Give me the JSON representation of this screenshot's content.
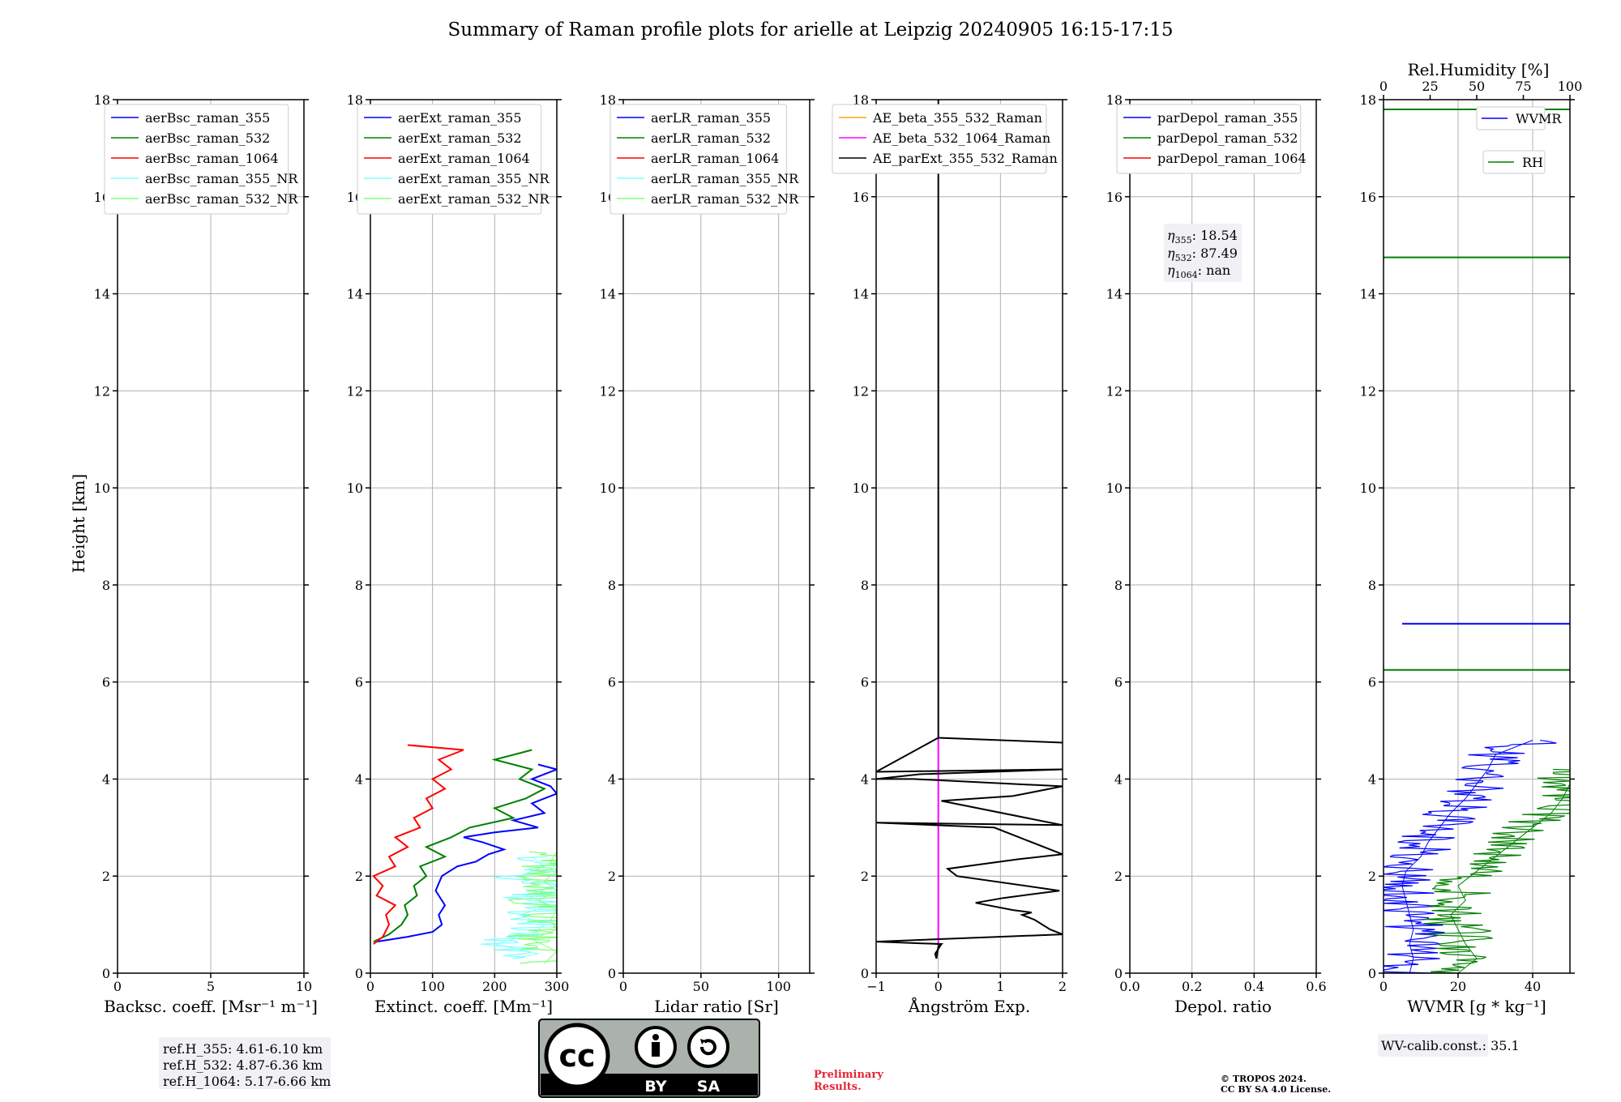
{
  "figure_title": "Summary of Raman profile plots for arielle at Leipzig 20240905 16:15-17:15",
  "y_axis_label": "Height [km]",
  "y_range": [
    0,
    18
  ],
  "y_ticks": [
    "0",
    "2",
    "4",
    "6",
    "8",
    "10",
    "12",
    "14",
    "16",
    "18"
  ],
  "colors": {
    "blue": "#0000ff",
    "green": "#008000",
    "red": "#ff0000",
    "cyan": "#7fffff",
    "lightgreen": "#7fff7f",
    "orange": "#ffa500",
    "magenta": "#ff00ff",
    "black": "#000000",
    "grid": "#b0b0b0",
    "boxbg": "#f0f0f5",
    "prelim": "#e32636"
  },
  "chart_data": [
    {
      "id": "bsc",
      "type": "line",
      "xlabel": "Backsc. coeff. [Msr⁻¹ m⁻¹]",
      "xlim": [
        0,
        10
      ],
      "xticks": [
        0,
        5,
        10
      ],
      "xticklabels": [
        "0",
        "5",
        "10"
      ],
      "legend": [
        "aerBsc_raman_355",
        "aerBsc_raman_532",
        "aerBsc_raman_1064",
        "aerBsc_raman_355_NR",
        "aerBsc_raman_532_NR"
      ],
      "legend_colors": [
        "blue",
        "green",
        "red",
        "cyan",
        "lightgreen"
      ],
      "series": []
    },
    {
      "id": "ext",
      "type": "line",
      "xlabel": "Extinct. coeff. [Mm⁻¹]",
      "xlim": [
        0,
        300
      ],
      "xticks": [
        0,
        100,
        200,
        300
      ],
      "xticklabels": [
        "0",
        "100",
        "200",
        "300"
      ],
      "legend": [
        "aerExt_raman_355",
        "aerExt_raman_532",
        "aerExt_raman_1064",
        "aerExt_raman_355_NR",
        "aerExt_raman_532_NR"
      ],
      "legend_colors": [
        "blue",
        "green",
        "red",
        "cyan",
        "lightgreen"
      ],
      "series": [
        {
          "name": "aerExt_raman_355",
          "color": "blue",
          "noisy": false,
          "points": [
            [
              10,
              0.65
            ],
            [
              60,
              0.75
            ],
            [
              100,
              0.85
            ],
            [
              115,
              1.0
            ],
            [
              110,
              1.2
            ],
            [
              120,
              1.4
            ],
            [
              105,
              1.7
            ],
            [
              115,
              2.0
            ],
            [
              140,
              2.2
            ],
            [
              170,
              2.3
            ],
            [
              190,
              2.45
            ],
            [
              215,
              2.55
            ],
            [
              180,
              2.7
            ],
            [
              150,
              2.8
            ],
            [
              200,
              2.9
            ],
            [
              270,
              3.0
            ],
            [
              230,
              3.15
            ],
            [
              280,
              3.3
            ],
            [
              260,
              3.5
            ],
            [
              300,
              3.7
            ],
            [
              290,
              3.85
            ],
            [
              260,
              4.0
            ],
            [
              300,
              4.2
            ],
            [
              270,
              4.3
            ]
          ]
        },
        {
          "name": "aerExt_raman_532",
          "color": "green",
          "noisy": false,
          "points": [
            [
              5,
              0.65
            ],
            [
              30,
              0.8
            ],
            [
              50,
              1.0
            ],
            [
              60,
              1.2
            ],
            [
              55,
              1.4
            ],
            [
              75,
              1.6
            ],
            [
              70,
              1.8
            ],
            [
              90,
              2.0
            ],
            [
              80,
              2.2
            ],
            [
              120,
              2.4
            ],
            [
              90,
              2.6
            ],
            [
              130,
              2.8
            ],
            [
              160,
              3.0
            ],
            [
              230,
              3.2
            ],
            [
              200,
              3.4
            ],
            [
              250,
              3.6
            ],
            [
              280,
              3.8
            ],
            [
              240,
              4.0
            ],
            [
              260,
              4.2
            ],
            [
              200,
              4.4
            ],
            [
              260,
              4.6
            ]
          ]
        },
        {
          "name": "aerExt_raman_1064",
          "color": "red",
          "noisy": false,
          "points": [
            [
              5,
              0.6
            ],
            [
              20,
              0.75
            ],
            [
              30,
              1.0
            ],
            [
              25,
              1.2
            ],
            [
              40,
              1.4
            ],
            [
              10,
              1.6
            ],
            [
              20,
              1.8
            ],
            [
              5,
              2.0
            ],
            [
              40,
              2.2
            ],
            [
              30,
              2.4
            ],
            [
              60,
              2.6
            ],
            [
              40,
              2.8
            ],
            [
              80,
              3.0
            ],
            [
              70,
              3.2
            ],
            [
              100,
              3.4
            ],
            [
              90,
              3.6
            ],
            [
              120,
              3.8
            ],
            [
              100,
              4.0
            ],
            [
              130,
              4.2
            ],
            [
              110,
              4.4
            ],
            [
              150,
              4.6
            ],
            [
              60,
              4.7
            ]
          ]
        },
        {
          "name": "aerExt_raman_355_NR",
          "color": "cyan",
          "noisy": true,
          "points": [
            [
              230,
              0.3
            ],
            [
              270,
              0.4
            ],
            [
              200,
              0.6
            ],
            [
              260,
              0.8
            ],
            [
              280,
              1.0
            ],
            [
              240,
              1.2
            ],
            [
              290,
              1.4
            ],
            [
              250,
              1.6
            ],
            [
              300,
              1.8
            ],
            [
              240,
              2.0
            ],
            [
              280,
              2.2
            ],
            [
              260,
              2.4
            ]
          ]
        },
        {
          "name": "aerExt_raman_532_NR",
          "color": "lightgreen",
          "noisy": true,
          "points": [
            [
              280,
              0.2
            ],
            [
              300,
              0.45
            ],
            [
              260,
              0.7
            ],
            [
              300,
              0.9
            ],
            [
              290,
              1.1
            ],
            [
              300,
              1.3
            ],
            [
              270,
              1.5
            ],
            [
              300,
              1.7
            ],
            [
              280,
              1.9
            ],
            [
              300,
              2.1
            ],
            [
              290,
              2.3
            ],
            [
              300,
              2.5
            ]
          ]
        }
      ]
    },
    {
      "id": "lr",
      "type": "line",
      "xlabel": "Lidar ratio [Sr]",
      "xlim": [
        0,
        120
      ],
      "xticks": [
        0,
        50,
        100
      ],
      "xticklabels": [
        "0",
        "50",
        "100"
      ],
      "legend": [
        "aerLR_raman_355",
        "aerLR_raman_532",
        "aerLR_raman_1064",
        "aerLR_raman_355_NR",
        "aerLR_raman_532_NR"
      ],
      "legend_colors": [
        "blue",
        "green",
        "red",
        "cyan",
        "lightgreen"
      ],
      "series": []
    },
    {
      "id": "ae",
      "type": "line",
      "xlabel": "Ångström Exp.",
      "xlim": [
        -1,
        2
      ],
      "xticks": [
        -1,
        0,
        1,
        2
      ],
      "xticklabels": [
        "−1",
        "0",
        "1",
        "2"
      ],
      "legend": [
        "AE_beta_355_532_Raman",
        "AE_beta_532_1064_Raman",
        "AE_parExt_355_532_Raman"
      ],
      "legend_colors": [
        "orange",
        "magenta",
        "black"
      ],
      "series": [
        {
          "name": "AE_beta_532_1064_Raman",
          "color": "magenta",
          "noisy": false,
          "points": [
            [
              0,
              0.55
            ],
            [
              0,
              4.85
            ]
          ]
        },
        {
          "name": "AE_parExt_355_532_Raman",
          "color": "black",
          "noisy": false,
          "points": [
            [
              -1,
              0.65
            ],
            [
              0.05,
              0.6
            ],
            [
              0,
              0.5
            ],
            [
              -0.05,
              0.4
            ],
            [
              -0.03,
              0.3
            ],
            [
              0,
              0.55
            ],
            [
              0.05,
              0.6
            ],
            [
              -1,
              0.65
            ],
            [
              -1,
              0.65
            ],
            [
              2,
              0.8
            ],
            [
              1.8,
              0.9
            ],
            [
              1.55,
              1.1
            ],
            [
              1.35,
              1.2
            ],
            [
              1.5,
              1.25
            ],
            [
              1.2,
              1.3
            ],
            [
              0.6,
              1.45
            ],
            [
              1.05,
              1.55
            ],
            [
              1.95,
              1.7
            ],
            [
              0.3,
              2.0
            ],
            [
              0.15,
              2.15
            ],
            [
              1.3,
              2.35
            ],
            [
              2,
              2.45
            ],
            [
              0.9,
              3.0
            ],
            [
              -1,
              3.1
            ],
            [
              2,
              3.05
            ],
            [
              0.05,
              3.55
            ],
            [
              1.2,
              3.65
            ],
            [
              2,
              3.85
            ],
            [
              -0.4,
              4.0
            ],
            [
              -1,
              4.0
            ],
            [
              -0.3,
              4.1
            ],
            [
              2,
              4.2
            ],
            [
              -1,
              4.15
            ],
            [
              0,
              4.85
            ],
            [
              2,
              4.75
            ],
            [
              0,
              4.85
            ],
            [
              0,
              18
            ]
          ]
        }
      ]
    },
    {
      "id": "depol",
      "type": "line",
      "xlabel": "Depol. ratio",
      "xlim": [
        0,
        0.6
      ],
      "xticks": [
        0,
        0.2,
        0.4,
        0.6
      ],
      "xticklabels": [
        "0.0",
        "0.2",
        "0.4",
        "0.6"
      ],
      "legend": [
        "parDepol_raman_355",
        "parDepol_raman_532",
        "parDepol_raman_1064"
      ],
      "legend_colors": [
        "blue",
        "green",
        "red"
      ],
      "annotation": {
        "eta355": "18.54",
        "eta532": "87.49",
        "eta1064": "nan"
      },
      "series": []
    },
    {
      "id": "wv",
      "type": "line",
      "xlabel": "WVMR [g * kg⁻¹]",
      "xlim": [
        0,
        50
      ],
      "xticks": [
        0,
        20,
        40
      ],
      "xticklabels": [
        "0",
        "20",
        "40"
      ],
      "top_axis_label": "Rel.Humidity [%]",
      "top_xlim": [
        0,
        100
      ],
      "top_xticks": [
        0,
        25,
        50,
        75,
        100
      ],
      "top_xticklabels": [
        "0",
        "25",
        "50",
        "75",
        "100"
      ],
      "legend": [
        "WVMR",
        "RH"
      ],
      "legend_colors": [
        "blue",
        "green"
      ],
      "hlines": [
        {
          "color": "green",
          "y": 17.8,
          "x0": 0,
          "x1": 50
        },
        {
          "color": "green",
          "y": 14.75,
          "x0": 0,
          "x1": 50
        },
        {
          "color": "blue",
          "y": 7.2,
          "x0": 5,
          "x1": 50
        },
        {
          "color": "green",
          "y": 6.25,
          "x0": 0,
          "x1": 50
        }
      ],
      "series": [
        {
          "name": "WVMR",
          "color": "blue",
          "noisy": true,
          "points": [
            [
              7,
              0
            ],
            [
              8,
              0.3
            ],
            [
              7,
              0.6
            ],
            [
              8,
              0.9
            ],
            [
              7,
              1.2
            ],
            [
              6,
              1.5
            ],
            [
              5,
              1.8
            ],
            [
              6,
              2.1
            ],
            [
              10,
              2.4
            ],
            [
              12,
              2.7
            ],
            [
              15,
              3.0
            ],
            [
              18,
              3.3
            ],
            [
              22,
              3.6
            ],
            [
              25,
              3.9
            ],
            [
              28,
              4.2
            ],
            [
              30,
              4.5
            ],
            [
              40,
              4.8
            ]
          ]
        },
        {
          "name": "RH",
          "color": "green",
          "noisy": true,
          "points": [
            [
              20,
              0
            ],
            [
              25,
              0.3
            ],
            [
              22,
              0.6
            ],
            [
              20,
              0.9
            ],
            [
              18,
              1.2
            ],
            [
              22,
              1.5
            ],
            [
              20,
              1.8
            ],
            [
              25,
              2.1
            ],
            [
              30,
              2.4
            ],
            [
              35,
              2.7
            ],
            [
              40,
              3.0
            ],
            [
              45,
              3.3
            ],
            [
              48,
              3.6
            ],
            [
              50,
              3.9
            ],
            [
              50,
              4.2
            ]
          ]
        }
      ]
    }
  ],
  "ref_heights": [
    "ref.H_355: 4.61-6.10 km",
    "ref.H_532: 4.87-6.36 km",
    "ref.H_1064: 5.17-6.66 km"
  ],
  "eta_labels": {
    "prefix": "η",
    "sub355": "355",
    "sub532": "532",
    "sub1064": "1064"
  },
  "wv_calib": "WV-calib.const.: 35.1",
  "license_badge": {
    "cc": "cc",
    "by": "BY",
    "sa": "SA"
  },
  "preliminary": [
    "Preliminary",
    "Results."
  ],
  "copyright": [
    "© TROPOS 2024.",
    "CC BY SA 4.0 License."
  ]
}
